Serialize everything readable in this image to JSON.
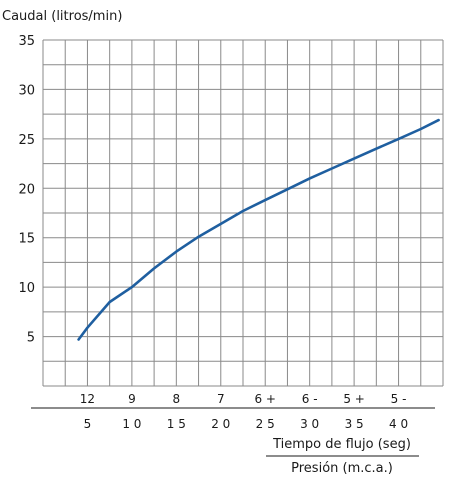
{
  "chart_data": {
    "type": "line",
    "ylabel": "Caudal (litros/min)",
    "xlabel_top": "Tiempo de flujo (seg)",
    "xlabel_bottom": "Presión (m.c.a.)",
    "ylim": [
      0,
      35
    ],
    "y_ticks": [
      5,
      10,
      15,
      20,
      25,
      30,
      35
    ],
    "grid": true,
    "x_ticks_tiempo": [
      {
        "label": "12",
        "at": 1
      },
      {
        "label": "9",
        "at": 2
      },
      {
        "label": "8",
        "at": 3
      },
      {
        "label": "7",
        "at": 4
      },
      {
        "label": "6 +",
        "at": 5
      },
      {
        "label": "6 -",
        "at": 6
      },
      {
        "label": "5 +",
        "at": 7
      },
      {
        "label": "5 -",
        "at": 8
      }
    ],
    "x_ticks_presion": [
      {
        "label": "5",
        "at": 1
      },
      {
        "label": "1 0",
        "at": 2
      },
      {
        "label": "1 5",
        "at": 3
      },
      {
        "label": "2 0",
        "at": 4
      },
      {
        "label": "2 5",
        "at": 5
      },
      {
        "label": "3 0",
        "at": 6
      },
      {
        "label": "3 5",
        "at": 7
      },
      {
        "label": "4 0",
        "at": 8
      }
    ],
    "xlim": [
      0,
      9
    ],
    "series": [
      {
        "color": "#1f5fa0",
        "x": [
          0.8,
          1.0,
          1.5,
          2.0,
          2.5,
          3.0,
          3.5,
          4.0,
          4.5,
          5.0,
          5.5,
          6.0,
          6.5,
          7.0,
          7.5,
          8.0,
          8.5,
          8.9
        ],
        "y": [
          4.7,
          5.9,
          8.5,
          10.0,
          11.9,
          13.6,
          15.1,
          16.4,
          17.7,
          18.8,
          19.9,
          21.0,
          22.0,
          23.0,
          24.0,
          25.0,
          26.0,
          26.9
        ]
      }
    ]
  }
}
